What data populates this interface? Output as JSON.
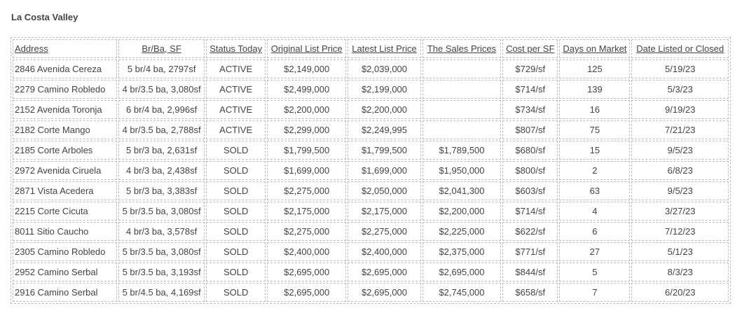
{
  "title": "La Costa Valley",
  "columns": [
    "Address",
    "Br/Ba, SF",
    "Status Today",
    "Original List Price",
    "Latest List Price",
    "The Sales Prices",
    "Cost per SF",
    "Days on Market",
    "Date Listed or Closed"
  ],
  "rows": [
    {
      "address": "2846 Avenida Cereza",
      "brba": "5 br/4 ba, 2797sf",
      "status": "ACTIVE",
      "orig": "$2,149,000",
      "latest": "$2,039,000",
      "sales": "",
      "cost": "$729/sf",
      "days": "125",
      "date": "5/19/23"
    },
    {
      "address": "2279 Camino Robledo",
      "brba": "4 br/3.5 ba, 3,080sf",
      "status": "ACTIVE",
      "orig": "$2,499,000",
      "latest": "$2,199,000",
      "sales": "",
      "cost": "$714/sf",
      "days": "139",
      "date": "5/3/23"
    },
    {
      "address": "2152 Avenida Toronja",
      "brba": "6 br/4 ba, 2,996sf",
      "status": "ACTIVE",
      "orig": "$2,200,000",
      "latest": "$2,200,000",
      "sales": "",
      "cost": "$734/sf",
      "days": "16",
      "date": "9/19/23"
    },
    {
      "address": "2182 Corte Mango",
      "brba": "4 br/3.5 ba, 2,788sf",
      "status": "ACTIVE",
      "orig": "$2,299,000",
      "latest": "$2,249,995",
      "sales": "",
      "cost": "$807/sf",
      "days": "75",
      "date": "7/21/23"
    },
    {
      "address": "2185 Corte Arboles",
      "brba": "5 br/3 ba, 2,631sf",
      "status": "SOLD",
      "orig": "$1,799,500",
      "latest": "$1,799,500",
      "sales": "$1,789,500",
      "cost": "$680/sf",
      "days": "15",
      "date": "9/5/23"
    },
    {
      "address": "2972 Avenida Ciruela",
      "brba": "4 br/3 ba, 2,438sf",
      "status": "SOLD",
      "orig": "$1,699,000",
      "latest": "$1,699,000",
      "sales": "$1,950,000",
      "cost": "$800/sf",
      "days": "2",
      "date": "6/8/23"
    },
    {
      "address": "2871 Vista Acedera",
      "brba": "5 br/3 ba, 3,383sf",
      "status": "SOLD",
      "orig": "$2,275,000",
      "latest": "$2,050,000",
      "sales": "$2,041,300",
      "cost": "$603/sf",
      "days": "63",
      "date": "9/5/23"
    },
    {
      "address": "2215 Corte Cicuta",
      "brba": "5 br/3.5 ba, 3,080sf",
      "status": "SOLD",
      "orig": "$2,175,000",
      "latest": "$2,175,000",
      "sales": "$2,200,000",
      "cost": "$714/sf",
      "days": "4",
      "date": "3/27/23"
    },
    {
      "address": "8011 Sitio Caucho",
      "brba": "4 br/3 ba, 3,578sf",
      "status": "SOLD",
      "orig": "$2,275,000",
      "latest": "$2,275,000",
      "sales": "$2,225,000",
      "cost": "$622/sf",
      "days": "6",
      "date": "7/12/23"
    },
    {
      "address": "2305 Camino Robledo",
      "brba": "5 br/3.5 ba, 3,080sf",
      "status": "SOLD",
      "orig": "$2,400,000",
      "latest": "$2,400,000",
      "sales": "$2,375,000",
      "cost": "$771/sf",
      "days": "27",
      "date": "5/1/23"
    },
    {
      "address": "2952 Camino Serbal",
      "brba": "5 br/3.5 ba, 3,193sf",
      "status": "SOLD",
      "orig": "$2,695,000",
      "latest": "$2,695,000",
      "sales": "$2,695,000",
      "cost": "$844/sf",
      "days": "5",
      "date": "8/3/23"
    },
    {
      "address": "2916 Camino Serbal",
      "brba": "5 br/4.5 ba, 4,169sf",
      "status": "SOLD",
      "orig": "$2,695,000",
      "latest": "$2,695,000",
      "sales": "$2,745,000",
      "cost": "$658/sf",
      "days": "7",
      "date": "6/20/23"
    }
  ],
  "colors": {
    "text": "#444444",
    "link": "#1a0dab",
    "red": "#e00000",
    "green": "#0a8a0a",
    "border": "#bdbdbd"
  }
}
